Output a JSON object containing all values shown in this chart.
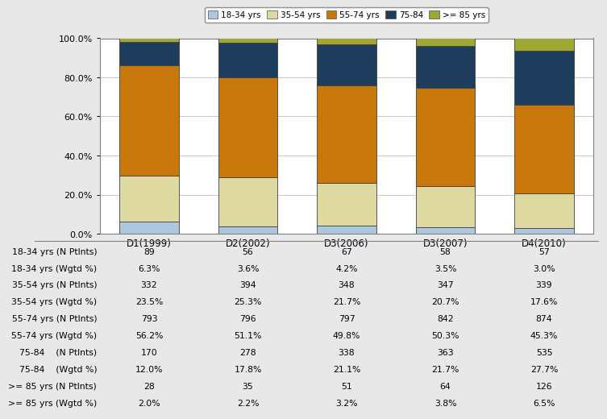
{
  "categories": [
    "D1(1999)",
    "D2(2002)",
    "D3(2006)",
    "D3(2007)",
    "D4(2010)"
  ],
  "series": {
    "18-34 yrs": [
      6.3,
      3.6,
      4.2,
      3.5,
      3.0
    ],
    "35-54 yrs": [
      23.5,
      25.3,
      21.7,
      20.7,
      17.6
    ],
    "55-74 yrs": [
      56.2,
      51.1,
      49.8,
      50.3,
      45.3
    ],
    "75-84": [
      12.0,
      17.8,
      21.1,
      21.7,
      27.7
    ],
    ">= 85 yrs": [
      2.0,
      2.2,
      3.2,
      3.8,
      6.5
    ]
  },
  "colors": {
    "18-34 yrs": "#adc6e0",
    "35-54 yrs": "#ddd9a0",
    "55-74 yrs": "#c8780a",
    "75-84": "#1e3d5c",
    ">= 85 yrs": "#9ea832"
  },
  "legend_labels": [
    "18-34 yrs",
    "35-54 yrs",
    "55-74 yrs",
    "75-84",
    ">= 85 yrs"
  ],
  "table_rows": [
    {
      "label": "18-34 yrs (N Ptlnts)",
      "values": [
        "89",
        "56",
        "67",
        "58",
        "57"
      ]
    },
    {
      "label": "18-34 yrs (Wgtd %)",
      "values": [
        "6.3%",
        "3.6%",
        "4.2%",
        "3.5%",
        "3.0%"
      ]
    },
    {
      "label": "35-54 yrs (N Ptlnts)",
      "values": [
        "332",
        "394",
        "348",
        "347",
        "339"
      ]
    },
    {
      "label": "35-54 yrs (Wgtd %)",
      "values": [
        "23.5%",
        "25.3%",
        "21.7%",
        "20.7%",
        "17.6%"
      ]
    },
    {
      "label": "55-74 yrs (N Ptlnts)",
      "values": [
        "793",
        "796",
        "797",
        "842",
        "874"
      ]
    },
    {
      "label": "55-74 yrs (Wgtd %)",
      "values": [
        "56.2%",
        "51.1%",
        "49.8%",
        "50.3%",
        "45.3%"
      ]
    },
    {
      "label": "75-84    (N Ptlnts)",
      "values": [
        "170",
        "278",
        "338",
        "363",
        "535"
      ]
    },
    {
      "label": "75-84    (Wgtd %)",
      "values": [
        "12.0%",
        "17.8%",
        "21.1%",
        "21.7%",
        "27.7%"
      ]
    },
    {
      ">= 85 yrs (N Ptlnts)": true,
      "label": ">= 85 yrs (N Ptlnts)",
      "values": [
        "28",
        "35",
        "51",
        "64",
        "126"
      ]
    },
    {
      "label": ">= 85 yrs (Wgtd %)",
      "values": [
        "2.0%",
        "2.2%",
        "3.2%",
        "3.8%",
        "6.5%"
      ]
    }
  ],
  "background_color": "#e8e8e8",
  "chart_bg": "#ffffff",
  "grid_color": "#c8c8c8",
  "border_color": "#808080"
}
